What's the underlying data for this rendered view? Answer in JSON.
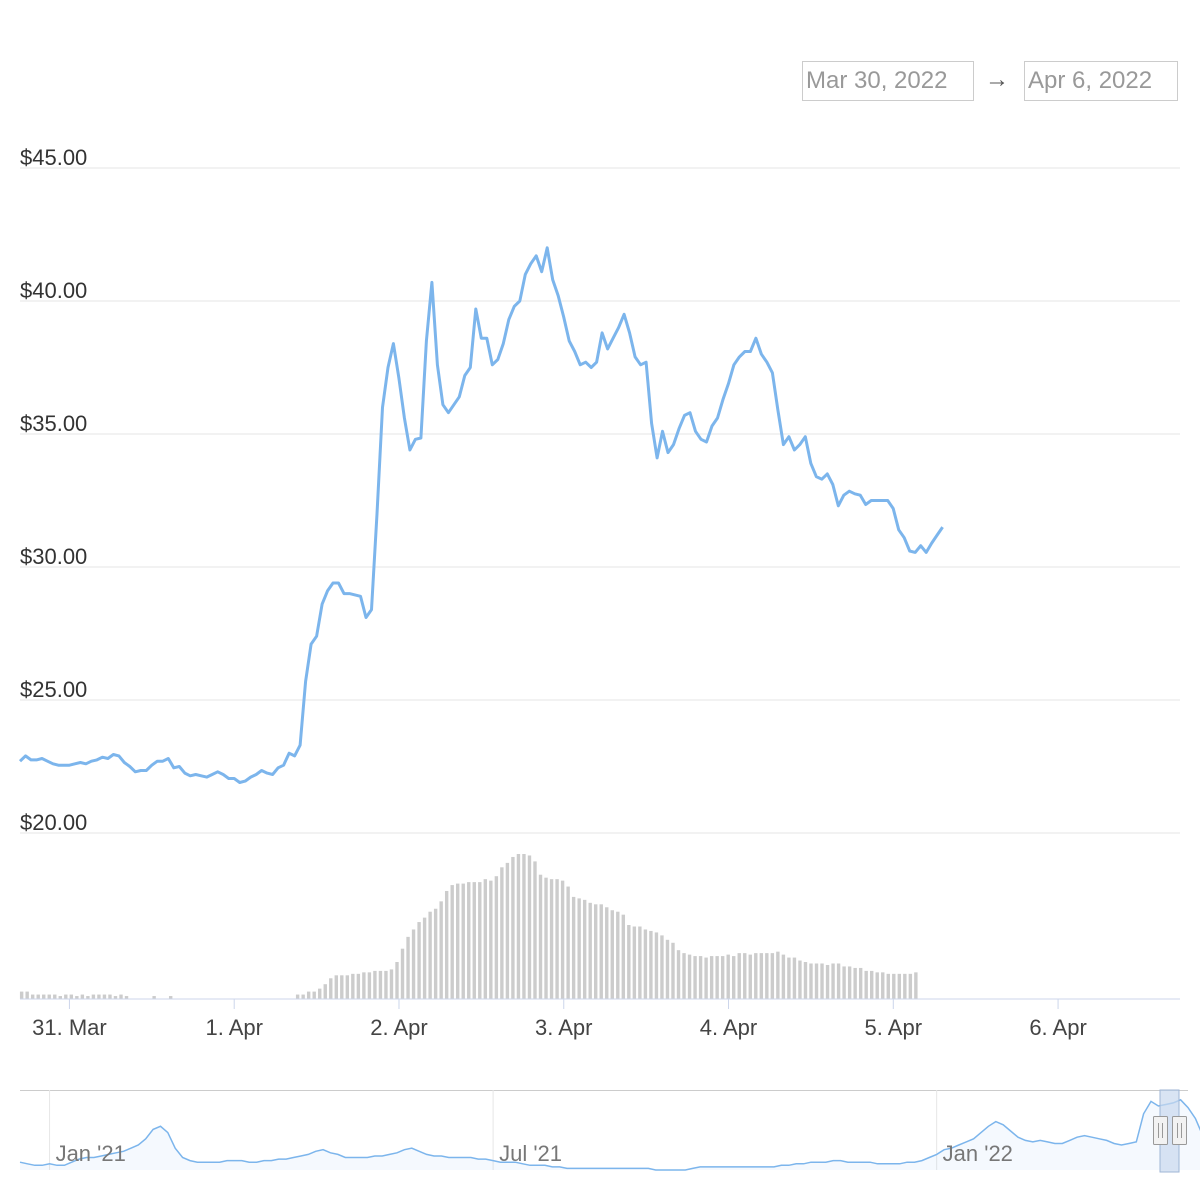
{
  "range_selector": {
    "from": "Mar 30, 2022",
    "arrow": "→",
    "to": "Apr 6, 2022"
  },
  "chart_data": {
    "type": "line",
    "title": "",
    "xlabel": "",
    "ylabel": "",
    "ylim": [
      20,
      45
    ],
    "y_ticks": [
      "$45.00",
      "$40.00",
      "$35.00",
      "$30.00",
      "$25.00",
      "$20.00"
    ],
    "x_ticks": [
      "31. Mar",
      "1. Apr",
      "2. Apr",
      "3. Apr",
      "4. Apr",
      "5. Apr",
      "6. Apr"
    ],
    "x_tick_days": [
      0,
      1,
      2,
      3,
      4,
      5,
      6
    ],
    "x_range_days": [
      -0.3,
      6.74
    ],
    "grid": true,
    "colors": {
      "line": "#7cb5ec",
      "volume": "#cccccc",
      "grid": "#e6e6e6",
      "navigator_mask": "#c9d9ee"
    },
    "price_series": {
      "start_day": -0.3,
      "step_day": 0.03333,
      "values": [
        22.7,
        22.9,
        22.75,
        22.75,
        22.8,
        22.7,
        22.6,
        22.55,
        22.55,
        22.55,
        22.6,
        22.65,
        22.6,
        22.7,
        22.75,
        22.85,
        22.8,
        22.95,
        22.9,
        22.65,
        22.5,
        22.3,
        22.35,
        22.35,
        22.55,
        22.7,
        22.7,
        22.8,
        22.45,
        22.5,
        22.25,
        22.15,
        22.2,
        22.15,
        22.1,
        22.2,
        22.3,
        22.2,
        22.05,
        22.05,
        21.9,
        21.95,
        22.1,
        22.2,
        22.35,
        22.25,
        22.2,
        22.45,
        22.55,
        23.0,
        22.9,
        23.3,
        25.7,
        27.1,
        27.4,
        28.6,
        29.1,
        29.4,
        29.4,
        29.0,
        29.0,
        28.95,
        28.9,
        28.1,
        28.4,
        32.0,
        36.0,
        37.5,
        38.4,
        37.1,
        35.6,
        34.4,
        34.8,
        34.85,
        38.5,
        40.7,
        37.6,
        36.1,
        35.8,
        36.1,
        36.4,
        37.2,
        37.5,
        39.7,
        38.6,
        38.6,
        37.6,
        37.8,
        38.4,
        39.3,
        39.8,
        40.0,
        41.0,
        41.4,
        41.7,
        41.1,
        42.0,
        40.8,
        40.2,
        39.4,
        38.5,
        38.1,
        37.6,
        37.7,
        37.5,
        37.7,
        38.8,
        38.2,
        38.6,
        39.0,
        39.5,
        38.8,
        37.9,
        37.6,
        37.7,
        35.4,
        34.1,
        35.1,
        34.3,
        34.6,
        35.2,
        35.7,
        35.8,
        35.1,
        34.8,
        34.7,
        35.3,
        35.6,
        36.3,
        36.9,
        37.6,
        37.9,
        38.1,
        38.1,
        38.6,
        38.0,
        37.7,
        37.3,
        35.9,
        34.6,
        34.9,
        34.4,
        34.6,
        34.9,
        33.9,
        33.4,
        33.3,
        33.5,
        33.1,
        32.3,
        32.7,
        32.85,
        32.75,
        32.7,
        32.35,
        32.5,
        32.5,
        32.5,
        32.5,
        32.2,
        31.4,
        31.1,
        30.6,
        30.55,
        30.8,
        30.55,
        30.9,
        31.2,
        31.5
      ]
    },
    "volume_series": {
      "start_day": -0.29,
      "step_day": 0.0335,
      "values": [
        5,
        5,
        3,
        3,
        3,
        3,
        3,
        2,
        3,
        3,
        2,
        3,
        2,
        3,
        3,
        3,
        3,
        2,
        3,
        2,
        0,
        0,
        0,
        0,
        2,
        0,
        0,
        2,
        0,
        0,
        0,
        0,
        0,
        0,
        0,
        0,
        0,
        0,
        0,
        0,
        0,
        0,
        0,
        0,
        0,
        0,
        0,
        0,
        0,
        0,
        3,
        3,
        5,
        5,
        7,
        10,
        14,
        16,
        16,
        16,
        17,
        17,
        18,
        18,
        19,
        19,
        19,
        20,
        25,
        34,
        42,
        47,
        52,
        55,
        59,
        61,
        66,
        73,
        77,
        78,
        78,
        79,
        79,
        79,
        81,
        80,
        83,
        89,
        92,
        96,
        98,
        98,
        97,
        93,
        84,
        82,
        81,
        81,
        80,
        76,
        69,
        68,
        67,
        65,
        64,
        64,
        62,
        60,
        59,
        57,
        50,
        49,
        49,
        47,
        46,
        45,
        43,
        40,
        38,
        33,
        31,
        30,
        29,
        29,
        28,
        29,
        29,
        29,
        30,
        29,
        31,
        31,
        30,
        31,
        31,
        31,
        31,
        32,
        30,
        28,
        28,
        26,
        25,
        24,
        24,
        24,
        23,
        24,
        24,
        22,
        22,
        21,
        21,
        19,
        19,
        18,
        18,
        17,
        17,
        17,
        17,
        17,
        18
      ]
    },
    "navigator": {
      "x_ticks": [
        "Jan '21",
        "Jul '21",
        "Jan '22"
      ],
      "x_tick_months": [
        0,
        6,
        12
      ],
      "x_range_months": [
        -0.4,
        15.4
      ],
      "ylim": [
        0,
        50
      ],
      "start_month": -0.4,
      "step_month": 0.1,
      "values": [
        5,
        4,
        3,
        3,
        4,
        3,
        3,
        5,
        7,
        8,
        8,
        9,
        10,
        11,
        12,
        14,
        16,
        20,
        26,
        28,
        24,
        14,
        8,
        6,
        5,
        5,
        5,
        5,
        6,
        6,
        6,
        5,
        5,
        6,
        6,
        7,
        7,
        8,
        9,
        10,
        12,
        13,
        11,
        10,
        8,
        8,
        8,
        8,
        9,
        9,
        10,
        11,
        13,
        14,
        12,
        10,
        9,
        9,
        8,
        8,
        8,
        8,
        7,
        7,
        6,
        5,
        5,
        5,
        4,
        3,
        3,
        3,
        2,
        2,
        1,
        1,
        1,
        1,
        1,
        1,
        1,
        1,
        1,
        1,
        1,
        1,
        0,
        0,
        0,
        0,
        0,
        1,
        2,
        2,
        2,
        2,
        2,
        2,
        2,
        2,
        2,
        2,
        2,
        3,
        3,
        4,
        4,
        5,
        5,
        5,
        6,
        6,
        5,
        5,
        5,
        5,
        4,
        4,
        4,
        4,
        5,
        5,
        6,
        8,
        10,
        13,
        14,
        16,
        18,
        20,
        24,
        28,
        31,
        29,
        25,
        21,
        19,
        18,
        19,
        18,
        17,
        17,
        19,
        21,
        22,
        21,
        20,
        19,
        17,
        16,
        17,
        18,
        36,
        44,
        41,
        42,
        43,
        45,
        40,
        33,
        22,
        20,
        19,
        17,
        19,
        19,
        20,
        18,
        16,
        18,
        20,
        21,
        24,
        25,
        26,
        21,
        19,
        18,
        17,
        17,
        18,
        17,
        16,
        18,
        19,
        19,
        20,
        22,
        36
      ]
    }
  }
}
